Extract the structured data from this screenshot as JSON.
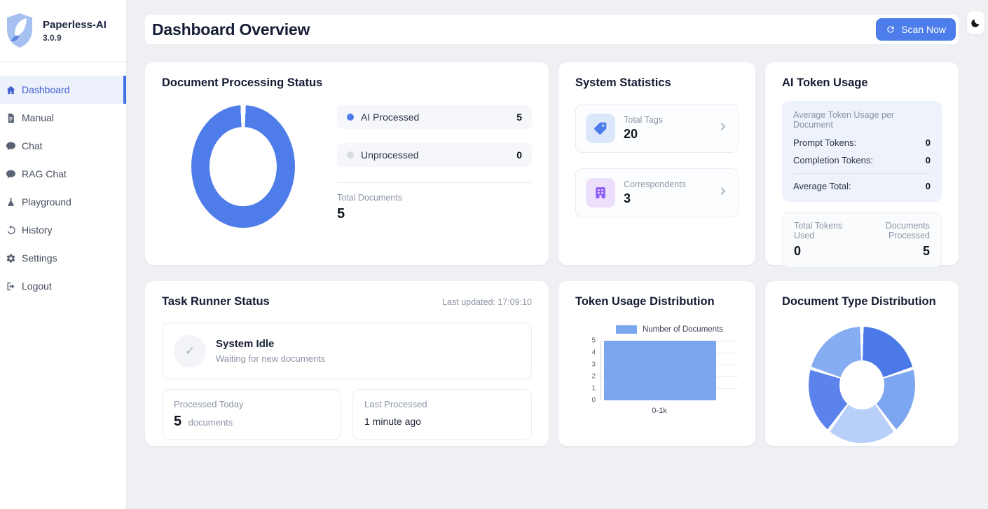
{
  "app": {
    "name": "Paperless-AI",
    "version": "3.0.9"
  },
  "sidebar": {
    "items": [
      {
        "label": "Dashboard",
        "icon": "home-icon",
        "active": true
      },
      {
        "label": "Manual",
        "icon": "document-icon",
        "active": false
      },
      {
        "label": "Chat",
        "icon": "chat-icon",
        "active": false
      },
      {
        "label": "RAG Chat",
        "icon": "chat-icon",
        "active": false
      },
      {
        "label": "Playground",
        "icon": "flask-icon",
        "active": false
      },
      {
        "label": "History",
        "icon": "history-icon",
        "active": false
      },
      {
        "label": "Settings",
        "icon": "gear-icon",
        "active": false
      },
      {
        "label": "Logout",
        "icon": "logout-icon",
        "active": false
      }
    ]
  },
  "header": {
    "title": "Dashboard Overview",
    "scan_button_label": "Scan Now",
    "theme_toggle_icon": "moon-icon"
  },
  "colors": {
    "accent_blue": "#4c7dea",
    "active_nav_blue": "#4061d4",
    "processed_blue": "#4e7de9",
    "unprocessed_gray": "#d9dce1",
    "bar_blue": "#7aa6ee",
    "tag_icon_blue": "#4c7de9",
    "correspondent_icon_purple": "#8b5cf6"
  },
  "cards": {
    "processing_status": {
      "title": "Document Processing Status",
      "chart_data": {
        "type": "donut",
        "labels": [
          "AI Processed",
          "Unprocessed"
        ],
        "values": [
          5,
          0
        ],
        "colors": [
          "#4e7de9",
          "#d9dce1"
        ],
        "cutout": 0.65,
        "gap": 5
      },
      "legend": [
        {
          "label": "AI Processed",
          "value": "5"
        },
        {
          "label": "Unprocessed",
          "value": "0"
        }
      ],
      "total_label": "Total Documents",
      "total_value": "5"
    },
    "system_statistics": {
      "title": "System Statistics",
      "stats": [
        {
          "label": "Total Tags",
          "value": "20",
          "icon": "tag-icon"
        },
        {
          "label": "Correspondents",
          "value": "3",
          "icon": "building-icon"
        }
      ]
    },
    "token_usage": {
      "title": "AI Token Usage",
      "average_section_label": "Average Token Usage per Document",
      "prompt_label": "Prompt Tokens:",
      "prompt_value": "0",
      "completion_label": "Completion Tokens:",
      "completion_value": "0",
      "average_total_label": "Average Total:",
      "average_total_value": "0",
      "total_tokens_label": "Total Tokens Used",
      "total_tokens_value": "0",
      "documents_processed_label": "Documents Processed",
      "documents_processed_value": "5"
    },
    "task_runner": {
      "title": "Task Runner Status",
      "last_updated": "Last updated: 17:09:10",
      "status_title": "System Idle",
      "status_subtitle": "Waiting for new documents",
      "status_icon": "check-icon",
      "processed_today_label": "Processed Today",
      "processed_today_value": "5",
      "processed_today_unit": "documents",
      "last_processed_label": "Last Processed",
      "last_processed_value": "1 minute ago"
    },
    "token_distribution": {
      "title": "Token Usage Distribution",
      "chart_data": {
        "type": "bar",
        "legend": "Number of Documents",
        "categories": [
          "0-1k"
        ],
        "values": [
          5
        ],
        "yticks": [
          "5",
          "4",
          "3",
          "2",
          "1",
          "0"
        ],
        "ylim": [
          0,
          5
        ],
        "bar_color": "#7aa6ee",
        "grid": true,
        "legend_position": "top"
      }
    },
    "document_types": {
      "title": "Document Type Distribution",
      "chart_data": {
        "type": "donut",
        "values": [
          1,
          1,
          1,
          1,
          1
        ],
        "colors": [
          "#4c79e8",
          "#7da6f0",
          "#b7cff9",
          "#5b83eb",
          "#86acf1"
        ],
        "cutout": 0.42,
        "gap": 3.5
      }
    }
  }
}
